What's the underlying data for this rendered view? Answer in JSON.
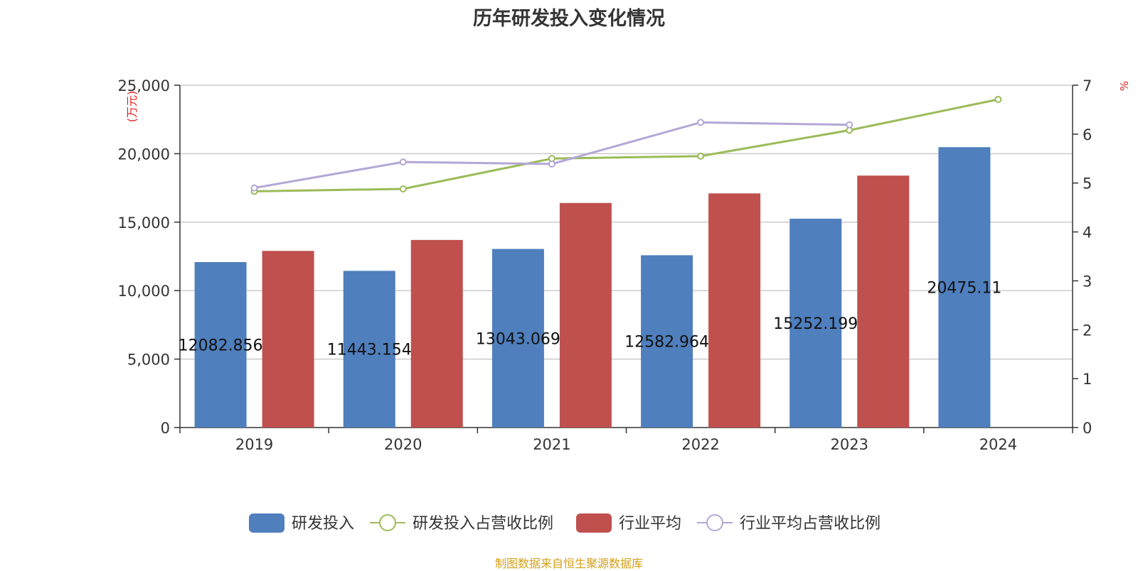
{
  "chart_data": {
    "type": "bar",
    "title": "历年研发投入变化情况",
    "categories": [
      "2019",
      "2020",
      "2021",
      "2022",
      "2023",
      "2024"
    ],
    "y_left": {
      "unit": "(万元)",
      "ylim": [
        0,
        25000
      ],
      "ticks": [
        "0",
        "5,000",
        "10,000",
        "15,000",
        "20,000",
        "25,000"
      ],
      "tick_values": [
        0,
        5000,
        10000,
        15000,
        20000,
        25000
      ]
    },
    "y_right": {
      "unit": "%",
      "ylim": [
        0,
        7
      ],
      "ticks": [
        "0",
        "1",
        "2",
        "3",
        "4",
        "5",
        "6",
        "7"
      ],
      "tick_values": [
        0,
        1,
        2,
        3,
        4,
        5,
        6,
        7
      ]
    },
    "series": [
      {
        "name": "研发投入",
        "type": "bar",
        "axis": "left",
        "color": "#4f7fbd",
        "values": [
          12082.856,
          11443.154,
          13043.069,
          12582.964,
          15252.199,
          20475.11
        ],
        "labels": [
          "12082.856",
          "11443.154",
          "13043.069",
          "12582.964",
          "15252.199",
          "20475.11"
        ]
      },
      {
        "name": "行业平均",
        "type": "bar",
        "axis": "left",
        "color": "#c0504d",
        "values": [
          12900,
          13700,
          16400,
          17100,
          18400,
          null
        ]
      },
      {
        "name": "研发投入占营收比例",
        "type": "line",
        "axis": "right",
        "color": "#9bbb59",
        "values": [
          4.83,
          4.88,
          5.5,
          5.55,
          6.08,
          6.71
        ]
      },
      {
        "name": "行业平均占营收比例",
        "type": "line",
        "axis": "right",
        "color": "#b4a7d6",
        "values": [
          4.9,
          5.43,
          5.39,
          6.24,
          6.19,
          null
        ]
      }
    ],
    "legend_position": "bottom",
    "grid": true
  },
  "source_note": "制图数据来自恒生聚源数据库"
}
